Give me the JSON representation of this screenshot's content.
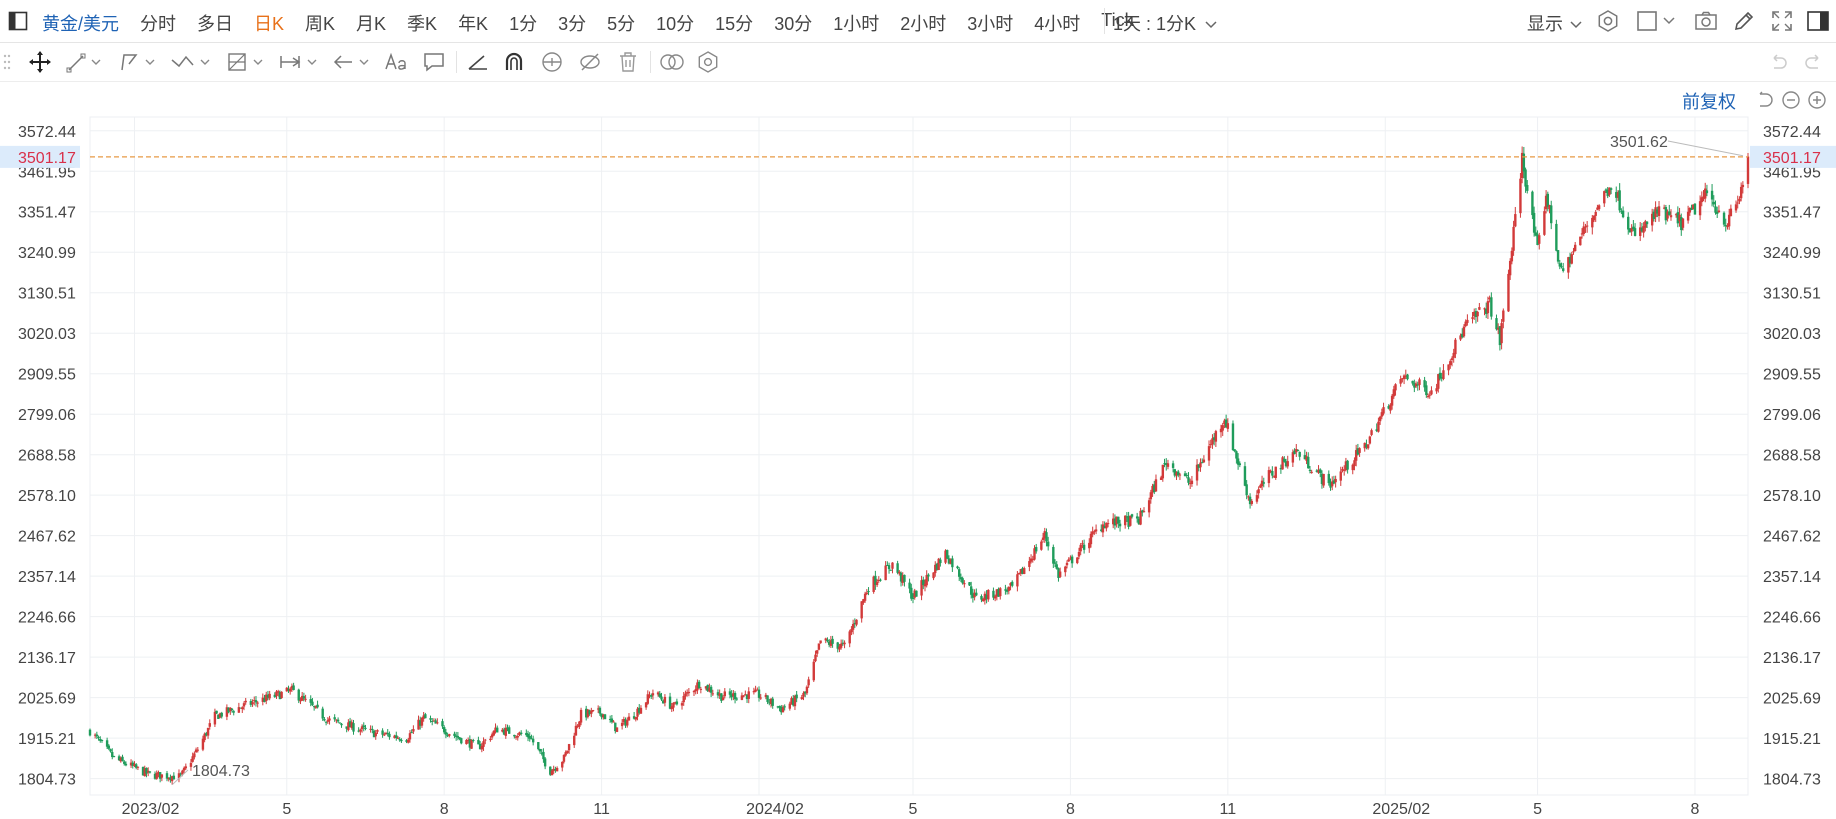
{
  "topbar": {
    "symbol": "黄金/美元",
    "periods": [
      "分时",
      "多日",
      "日K",
      "周K",
      "月K",
      "季K",
      "年K",
      "1分",
      "3分",
      "5分",
      "10分",
      "15分",
      "30分",
      "1小时",
      "2小时",
      "3小时",
      "4小时",
      "Tick"
    ],
    "active_period": "日K",
    "interval_label": "1天 : 1分K",
    "display_label": "显示"
  },
  "adjust_label": "前复权",
  "icons": {
    "sidebar": "sidebar-toggle-icon",
    "settings": "gear-icon",
    "layout": "layout-square-icon",
    "camera": "camera-icon",
    "pen": "pen-icon",
    "fullscreen": "fullscreen-icon",
    "panel": "right-panel-icon",
    "undo": "undo-icon",
    "redo": "redo-icon",
    "reset": "reset-icon",
    "zoom_out": "zoom-out-icon",
    "zoom_in": "zoom-in-icon"
  },
  "colors": {
    "up": "#d23a3a",
    "down": "#1f9c5b",
    "accent": "#1f63b5",
    "active": "#e8711a",
    "price_line": "#e79a45",
    "price_tag_text": "#d9304a",
    "price_tag_bg": "#dcebfb"
  },
  "chart_data": {
    "type": "candlestick",
    "y_ticks": [
      "3572.44",
      "3461.95",
      "3351.47",
      "3240.99",
      "3130.51",
      "3020.03",
      "2909.55",
      "2799.06",
      "2688.58",
      "2578.10",
      "2467.62",
      "2357.14",
      "2246.66",
      "2136.17",
      "2025.69",
      "1915.21",
      "1804.73"
    ],
    "ylim": [
      1760,
      3610
    ],
    "x_ticks": [
      "2023/02",
      "5",
      "8",
      "11",
      "2024/02",
      "5",
      "8",
      "11",
      "2025/02",
      "5",
      "8"
    ],
    "x_tick_dates": [
      "2023-02-01",
      "2023-05-01",
      "2023-08-01",
      "2023-11-01",
      "2024-02-01",
      "2024-05-01",
      "2024-08-01",
      "2024-11-01",
      "2025-02-01",
      "2025-05-01",
      "2025-08-01"
    ],
    "x_start": "2023-01-06",
    "x_end": "2025-09-01",
    "current_price": "3501.17",
    "high_label": "3501.62",
    "low_label": "1804.73",
    "path": [
      [
        "2023-01-06",
        1935
      ],
      [
        "2023-01-20",
        1860
      ],
      [
        "2023-02-10",
        1815
      ],
      [
        "2023-02-28",
        1810
      ],
      [
        "2023-03-10",
        1885
      ],
      [
        "2023-03-20",
        1975
      ],
      [
        "2023-04-10",
        2010
      ],
      [
        "2023-05-04",
        2045
      ],
      [
        "2023-05-25",
        1965
      ],
      [
        "2023-06-20",
        1930
      ],
      [
        "2023-07-10",
        1915
      ],
      [
        "2023-07-20",
        1970
      ],
      [
        "2023-08-10",
        1915
      ],
      [
        "2023-08-21",
        1890
      ],
      [
        "2023-09-01",
        1940
      ],
      [
        "2023-09-20",
        1920
      ],
      [
        "2023-10-02",
        1825
      ],
      [
        "2023-10-10",
        1860
      ],
      [
        "2023-10-20",
        1980
      ],
      [
        "2023-11-01",
        1985
      ],
      [
        "2023-11-10",
        1940
      ],
      [
        "2023-11-20",
        1980
      ],
      [
        "2023-12-01",
        2040
      ],
      [
        "2023-12-13",
        2000
      ],
      [
        "2023-12-28",
        2065
      ],
      [
        "2024-01-10",
        2030
      ],
      [
        "2024-01-31",
        2035
      ],
      [
        "2024-02-14",
        1995
      ],
      [
        "2024-02-28",
        2035
      ],
      [
        "2024-03-08",
        2180
      ],
      [
        "2024-03-22",
        2165
      ],
      [
        "2024-04-05",
        2330
      ],
      [
        "2024-04-19",
        2390
      ],
      [
        "2024-05-01",
        2300
      ],
      [
        "2024-05-20",
        2420
      ],
      [
        "2024-06-07",
        2295
      ],
      [
        "2024-06-28",
        2325
      ],
      [
        "2024-07-17",
        2470
      ],
      [
        "2024-07-25",
        2360
      ],
      [
        "2024-08-20",
        2500
      ],
      [
        "2024-09-10",
        2510
      ],
      [
        "2024-09-26",
        2670
      ],
      [
        "2024-10-10",
        2610
      ],
      [
        "2024-10-30",
        2790
      ],
      [
        "2024-11-14",
        2560
      ],
      [
        "2024-11-25",
        2630
      ],
      [
        "2024-12-11",
        2700
      ],
      [
        "2024-12-30",
        2605
      ],
      [
        "2025-01-20",
        2710
      ],
      [
        "2025-02-11",
        2900
      ],
      [
        "2025-02-28",
        2860
      ],
      [
        "2025-03-20",
        3040
      ],
      [
        "2025-04-03",
        3100
      ],
      [
        "2025-04-09",
        3000
      ],
      [
        "2025-04-18",
        3330
      ],
      [
        "2025-04-22",
        3500
      ],
      [
        "2025-05-01",
        3240
      ],
      [
        "2025-05-06",
        3400
      ],
      [
        "2025-05-15",
        3180
      ],
      [
        "2025-05-28",
        3300
      ],
      [
        "2025-06-13",
        3430
      ],
      [
        "2025-06-27",
        3280
      ],
      [
        "2025-07-10",
        3350
      ],
      [
        "2025-07-25",
        3320
      ],
      [
        "2025-08-08",
        3400
      ],
      [
        "2025-08-20",
        3320
      ],
      [
        "2025-08-27",
        3390
      ],
      [
        "2025-09-01",
        3501.17
      ]
    ]
  }
}
